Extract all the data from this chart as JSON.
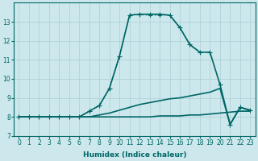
{
  "xlabel": "Humidex (Indice chaleur)",
  "xlim": [
    -0.5,
    23.5
  ],
  "ylim": [
    7,
    14
  ],
  "yticks": [
    7,
    8,
    9,
    10,
    11,
    12,
    13
  ],
  "xticks": [
    0,
    1,
    2,
    3,
    4,
    5,
    6,
    7,
    8,
    9,
    10,
    11,
    12,
    13,
    14,
    15,
    16,
    17,
    18,
    19,
    20,
    21,
    22,
    23
  ],
  "bg_color": "#cce8ec",
  "grid_color": "#aacdd4",
  "line_color": "#006666",
  "series": [
    {
      "x": [
        0,
        1,
        2,
        3,
        4,
        5,
        6,
        7,
        8,
        9,
        10,
        11,
        12,
        13,
        14,
        15,
        16,
        17,
        18,
        19,
        20,
        21,
        22,
        23
      ],
      "y": [
        8.0,
        8.0,
        8.0,
        8.0,
        8.0,
        8.0,
        8.0,
        8.0,
        8.0,
        8.0,
        8.0,
        8.0,
        8.0,
        8.0,
        8.05,
        8.05,
        8.05,
        8.1,
        8.1,
        8.15,
        8.2,
        8.25,
        8.3,
        8.3
      ],
      "style": "solid",
      "marker": "None",
      "markersize": 3,
      "linewidth": 1.2,
      "zorder": 2
    },
    {
      "x": [
        0,
        1,
        2,
        3,
        4,
        5,
        6,
        7,
        8,
        9,
        10,
        11,
        12,
        13,
        14,
        15,
        16,
        17,
        18,
        19,
        20,
        21,
        22,
        23
      ],
      "y": [
        8.0,
        8.0,
        8.0,
        8.0,
        8.0,
        8.0,
        8.0,
        8.0,
        8.1,
        8.2,
        8.35,
        8.5,
        8.65,
        8.75,
        8.85,
        8.95,
        9.0,
        9.1,
        9.2,
        9.3,
        9.5,
        7.6,
        8.5,
        8.35
      ],
      "style": "solid",
      "marker": "None",
      "markersize": 3,
      "linewidth": 1.2,
      "zorder": 2
    },
    {
      "x": [
        0,
        1,
        2,
        3,
        4,
        5,
        6,
        7,
        8,
        9,
        10,
        11,
        12,
        13,
        14,
        15,
        16,
        17,
        18,
        19,
        20,
        21,
        22,
        23
      ],
      "y": [
        8.0,
        8.0,
        8.0,
        8.0,
        8.0,
        8.0,
        8.0,
        8.3,
        8.6,
        9.5,
        11.2,
        13.35,
        13.4,
        13.4,
        13.4,
        13.35,
        12.7,
        11.8,
        11.4,
        11.4,
        9.7,
        7.6,
        8.5,
        8.35
      ],
      "style": "solid",
      "marker": "+",
      "markersize": 4,
      "linewidth": 1.2,
      "zorder": 3
    },
    {
      "x": [
        0,
        1,
        2,
        3,
        4,
        5,
        6,
        7,
        8,
        9,
        10,
        11,
        12,
        13,
        14,
        15,
        16,
        17,
        18
      ],
      "y": [
        8.0,
        8.0,
        8.0,
        8.0,
        8.0,
        8.0,
        8.0,
        8.3,
        8.6,
        9.5,
        11.2,
        13.35,
        13.4,
        13.35,
        13.35,
        13.35,
        12.7,
        11.8,
        11.4
      ],
      "style": "dotted",
      "marker": "+",
      "markersize": 3,
      "linewidth": 1.0,
      "zorder": 2
    }
  ]
}
